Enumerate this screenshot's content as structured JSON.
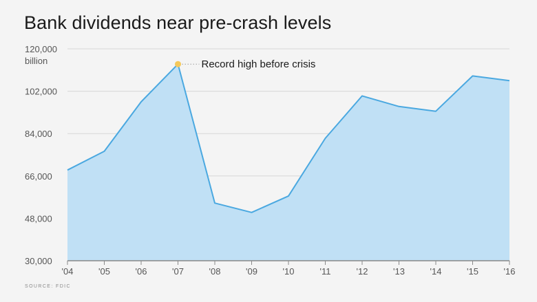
{
  "title": "Bank dividends near pre-crash levels",
  "source": "SOURCE: FDIC",
  "colors": {
    "area_fill": "#c0e0f5",
    "line": "#4aa8e0",
    "highlight": "#f5c85a",
    "grid": "#d6d6d6",
    "axis": "#888888"
  },
  "chart_data": {
    "type": "area",
    "title": "Bank dividends near pre-crash levels",
    "unit_label": "billion",
    "x": [
      "'04",
      "'05",
      "'06",
      "'07",
      "'08",
      "'09",
      "'10",
      "'11",
      "'12",
      "'13",
      "'14",
      "'15",
      "'16"
    ],
    "values": [
      68500,
      76500,
      97500,
      113500,
      54500,
      50500,
      57500,
      82000,
      100000,
      95500,
      93500,
      108500,
      106500
    ],
    "ylim": [
      30000,
      120000
    ],
    "yticks": [
      30000,
      48000,
      66000,
      84000,
      102000,
      120000
    ],
    "ytick_labels": [
      "30,000",
      "48,000",
      "66,000",
      "84,000",
      "102,000",
      "120,000"
    ],
    "grid": true,
    "annotation": {
      "text": "Record high before crisis",
      "x": "'07",
      "value": 113500
    }
  }
}
